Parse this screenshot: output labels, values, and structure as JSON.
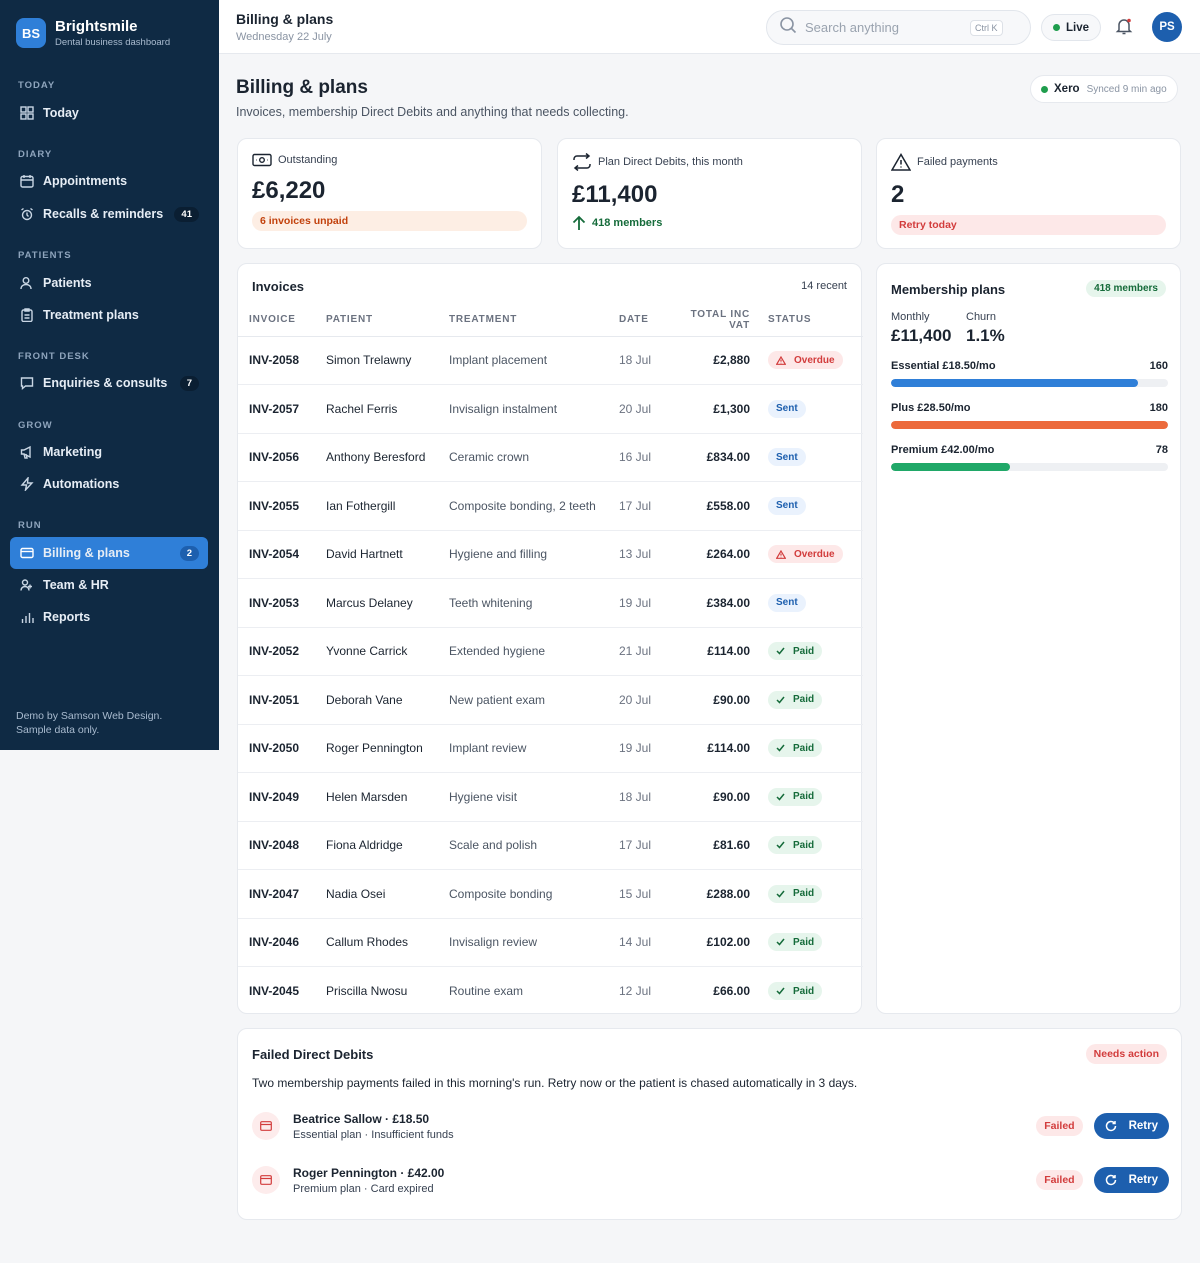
{
  "brand": {
    "initials": "BS",
    "name": "Brightsmile",
    "subtitle": "Dental business dashboard"
  },
  "sidebar": {
    "sections": [
      "TODAY",
      "DIARY",
      "PATIENTS",
      "FRONT DESK",
      "GROW",
      "RUN"
    ],
    "items": [
      {
        "label": "Today",
        "icon": "grid-icon"
      },
      {
        "label": "Appointments",
        "icon": "calendar-icon"
      },
      {
        "label": "Recalls & reminders",
        "icon": "alarm-icon",
        "badge": "41"
      },
      {
        "label": "Patients",
        "icon": "users-icon"
      },
      {
        "label": "Treatment plans",
        "icon": "clipboard-icon"
      },
      {
        "label": "Enquiries & consults",
        "icon": "chat-icon",
        "badge": "7"
      },
      {
        "label": "Marketing",
        "icon": "megaphone-icon"
      },
      {
        "label": "Automations",
        "icon": "bolt-icon"
      },
      {
        "label": "Billing & plans",
        "icon": "card-icon",
        "badge": "2",
        "active": true
      },
      {
        "label": "Team & HR",
        "icon": "team-icon"
      },
      {
        "label": "Reports",
        "icon": "bar-chart-icon"
      }
    ],
    "footer_line1": "Demo by Samson Web Design.",
    "footer_line2": "Sample data only."
  },
  "topbar": {
    "title": "Billing & plans",
    "date": "Wednesday 22 July",
    "search_placeholder": "Search anything",
    "search_shortcut": "Ctrl K",
    "live_label": "Live",
    "avatar_initials": "PS"
  },
  "page": {
    "title": "Billing & plans",
    "subtitle": "Invoices, membership Direct Debits and anything that needs collecting.",
    "xero_label": "Xero",
    "xero_sync": "Synced 9 min ago"
  },
  "stats": {
    "outstanding": {
      "label": "Outstanding",
      "value": "£6,220",
      "note": "6 invoices unpaid"
    },
    "plans": {
      "label": "Plan Direct Debits, this month",
      "value": "£11,400",
      "note": "418 members"
    },
    "failed": {
      "label": "Failed payments",
      "value": "2",
      "note": "Retry today"
    }
  },
  "invoices": {
    "title": "Invoices",
    "count": "14 recent",
    "columns": [
      "INVOICE",
      "PATIENT",
      "TREATMENT",
      "DATE",
      "TOTAL INC VAT",
      "STATUS"
    ],
    "rows": [
      {
        "id": "INV-2058",
        "patient": "Simon Trelawny",
        "treatment": "Implant placement",
        "date": "18 Jul",
        "total": "£2,880",
        "status": "Overdue"
      },
      {
        "id": "INV-2057",
        "patient": "Rachel Ferris",
        "treatment": "Invisalign instalment",
        "date": "20 Jul",
        "total": "£1,300",
        "status": "Sent"
      },
      {
        "id": "INV-2056",
        "patient": "Anthony Beresford",
        "treatment": "Ceramic crown",
        "date": "16 Jul",
        "total": "£834.00",
        "status": "Sent"
      },
      {
        "id": "INV-2055",
        "patient": "Ian Fothergill",
        "treatment": "Composite bonding, 2 teeth",
        "date": "17 Jul",
        "total": "£558.00",
        "status": "Sent"
      },
      {
        "id": "INV-2054",
        "patient": "David Hartnett",
        "treatment": "Hygiene and filling",
        "date": "13 Jul",
        "total": "£264.00",
        "status": "Overdue"
      },
      {
        "id": "INV-2053",
        "patient": "Marcus Delaney",
        "treatment": "Teeth whitening",
        "date": "19 Jul",
        "total": "£384.00",
        "status": "Sent"
      },
      {
        "id": "INV-2052",
        "patient": "Yvonne Carrick",
        "treatment": "Extended hygiene",
        "date": "21 Jul",
        "total": "£114.00",
        "status": "Paid"
      },
      {
        "id": "INV-2051",
        "patient": "Deborah Vane",
        "treatment": "New patient exam",
        "date": "20 Jul",
        "total": "£90.00",
        "status": "Paid"
      },
      {
        "id": "INV-2050",
        "patient": "Roger Pennington",
        "treatment": "Implant review",
        "date": "19 Jul",
        "total": "£114.00",
        "status": "Paid"
      },
      {
        "id": "INV-2049",
        "patient": "Helen Marsden",
        "treatment": "Hygiene visit",
        "date": "18 Jul",
        "total": "£90.00",
        "status": "Paid"
      },
      {
        "id": "INV-2048",
        "patient": "Fiona Aldridge",
        "treatment": "Scale and polish",
        "date": "17 Jul",
        "total": "£81.60",
        "status": "Paid"
      },
      {
        "id": "INV-2047",
        "patient": "Nadia Osei",
        "treatment": "Composite bonding",
        "date": "15 Jul",
        "total": "£288.00",
        "status": "Paid"
      },
      {
        "id": "INV-2046",
        "patient": "Callum Rhodes",
        "treatment": "Invisalign review",
        "date": "14 Jul",
        "total": "£102.00",
        "status": "Paid"
      },
      {
        "id": "INV-2045",
        "patient": "Priscilla Nwosu",
        "treatment": "Routine exam",
        "date": "12 Jul",
        "total": "£66.00",
        "status": "Paid"
      }
    ]
  },
  "membership": {
    "title": "Membership plans",
    "badge": "418 members",
    "monthly_label": "Monthly",
    "monthly_value": "£11,400",
    "churn_label": "Churn",
    "churn_value": "1.1%",
    "plans": [
      {
        "name": "Essential £18.50/mo",
        "members": "160",
        "fill": 0.89,
        "color": "#2f7fd8"
      },
      {
        "name": "Plus £28.50/mo",
        "members": "180",
        "fill": 1.0,
        "color": "#ec6a3c"
      },
      {
        "name": "Premium £42.00/mo",
        "members": "78",
        "fill": 0.43,
        "color": "#20a868"
      }
    ]
  },
  "failed_dd": {
    "title": "Failed Direct Debits",
    "badge": "Needs action",
    "description": "Two membership payments failed in this morning's run. Retry now or the patient is chased automatically in 3 days.",
    "items": [
      {
        "name": "Beatrice Sallow · £18.50",
        "meta": "Essential plan · Insufficient funds",
        "status": "Failed",
        "action": "Retry"
      },
      {
        "name": "Roger Pennington · £42.00",
        "meta": "Premium plan · Card expired",
        "status": "Failed",
        "action": "Retry"
      }
    ]
  },
  "colors": {
    "sidebar": "#0f2a44",
    "accent": "#2f7fd8",
    "primary_button": "#1d5fae",
    "danger": "#d23c3c",
    "success": "#156b3a"
  }
}
